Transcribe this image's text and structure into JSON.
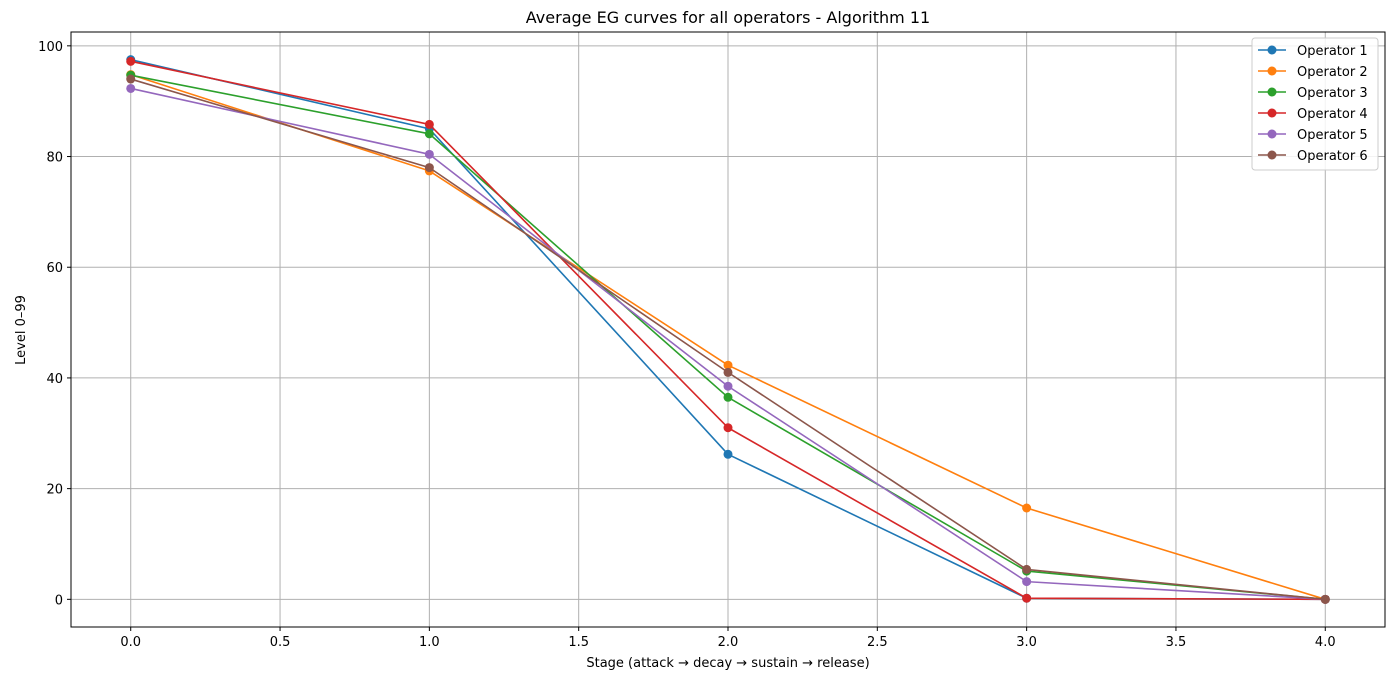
{
  "chart_data": {
    "type": "line",
    "title": "Average EG curves for all operators - Algorithm 11",
    "xlabel": "Stage (attack → decay → sustain → release)",
    "ylabel": "Level 0–99",
    "xlim": [
      -0.2,
      4.2
    ],
    "ylim": [
      -5,
      102.5
    ],
    "xticks": [
      0.0,
      0.5,
      1.0,
      1.5,
      2.0,
      2.5,
      3.0,
      3.5,
      4.0
    ],
    "xtick_labels": [
      "0.0",
      "0.5",
      "1.0",
      "1.5",
      "2.0",
      "2.5",
      "3.0",
      "3.5",
      "4.0"
    ],
    "yticks": [
      0,
      20,
      40,
      60,
      80,
      100
    ],
    "ytick_labels": [
      "0",
      "20",
      "40",
      "60",
      "80",
      "100"
    ],
    "grid": true,
    "legend_position": "top-right",
    "x": [
      0,
      1,
      2,
      3,
      4
    ],
    "series": [
      {
        "name": "Operator 1",
        "color": "#1f77b4",
        "values": [
          97.5,
          85.0,
          26.2,
          0.2,
          0.0
        ]
      },
      {
        "name": "Operator 2",
        "color": "#ff7f0e",
        "values": [
          94.8,
          77.4,
          42.3,
          16.5,
          0.0
        ]
      },
      {
        "name": "Operator 3",
        "color": "#2ca02c",
        "values": [
          94.7,
          84.1,
          36.5,
          5.1,
          0.0
        ]
      },
      {
        "name": "Operator 4",
        "color": "#d62728",
        "values": [
          97.2,
          85.8,
          31.0,
          0.2,
          0.0
        ]
      },
      {
        "name": "Operator 5",
        "color": "#9467bd",
        "values": [
          92.3,
          80.4,
          38.5,
          3.2,
          0.0
        ]
      },
      {
        "name": "Operator 6",
        "color": "#8c564b",
        "values": [
          94.0,
          78.0,
          41.0,
          5.4,
          0.0
        ]
      }
    ]
  }
}
